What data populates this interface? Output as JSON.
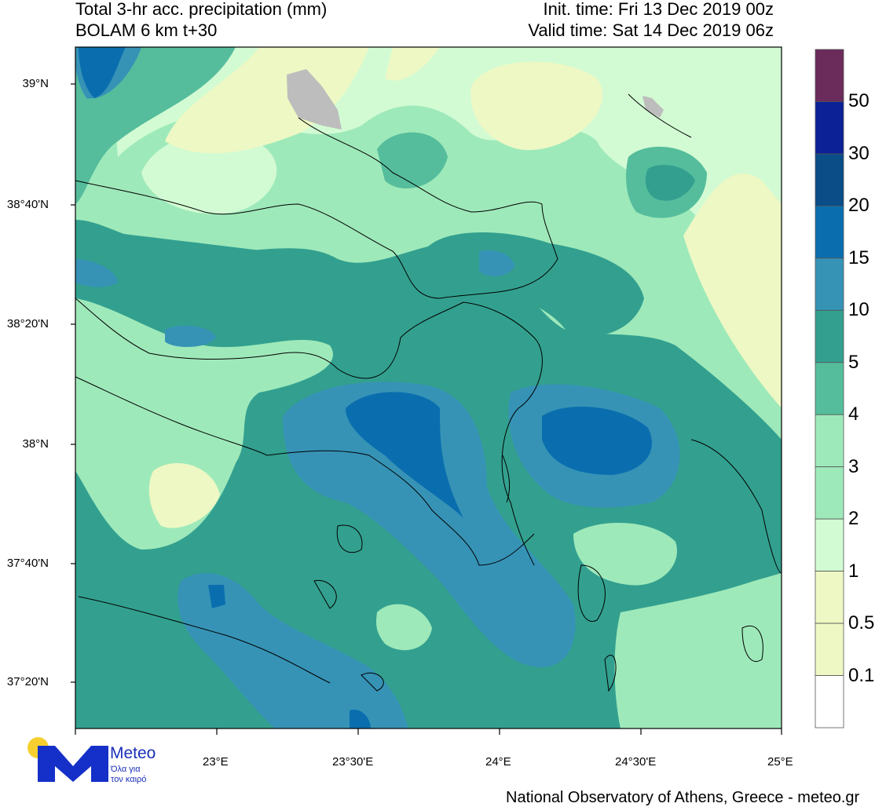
{
  "header": {
    "title_line1": "Total 3-hr acc. precipitation (mm)",
    "title_line2": "BOLAM 6 km t+30",
    "init_time": "Init. time: Fri 13 Dec 2019 00z",
    "valid_time": "Valid time: Sat 14 Dec 2019 06z"
  },
  "map": {
    "lat_ticks": [
      "39°N",
      "38°40'N",
      "38°20'N",
      "38°N",
      "37°40'N",
      "37°20'N"
    ],
    "lon_ticks": [
      "23°E",
      "23°30'E",
      "24°E",
      "24°30'E",
      "25°E"
    ]
  },
  "colorbar": {
    "labels": [
      "50",
      "30",
      "20",
      "15",
      "10",
      "5",
      "4",
      "3",
      "2",
      "1",
      "0.5",
      "0.1"
    ],
    "colors": [
      "#6b2b5b",
      "#0c2196",
      "#0a4d87",
      "#0a6eae",
      "#3693b6",
      "#33a08f",
      "#55bd9c",
      "#9ee9ba",
      "#9ee9ba",
      "#d2fbd3",
      "#eef8c4",
      "#eef8c4",
      "#ffffff"
    ]
  },
  "logo": {
    "brand": "Meteo",
    "tagline_1": "Όλα για",
    "tagline_2": "τον καιρό",
    "blue": "#1530c8",
    "yellow": "#f7d030"
  },
  "footer": {
    "credit": "National Observatory of Athens, Greece - meteo.gr"
  }
}
